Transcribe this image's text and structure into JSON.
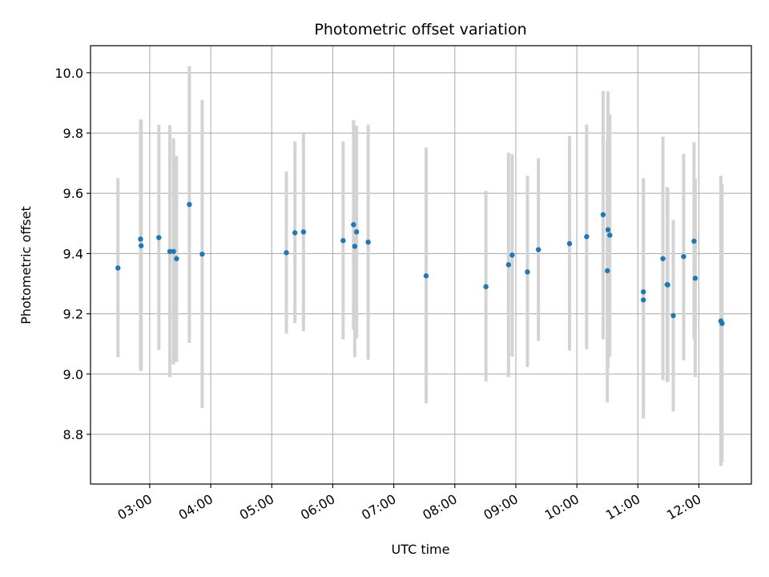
{
  "chart_data": {
    "type": "scatter",
    "title": "Photometric offset variation",
    "xlabel": "UTC time",
    "ylabel": "Photometric offset",
    "x_unit": "hours",
    "xlim": [
      2.03,
      12.86
    ],
    "ylim": [
      8.635,
      10.09
    ],
    "xticks": [
      {
        "value": 3,
        "label": "03:00"
      },
      {
        "value": 4,
        "label": "04:00"
      },
      {
        "value": 5,
        "label": "05:00"
      },
      {
        "value": 6,
        "label": "06:00"
      },
      {
        "value": 7,
        "label": "07:00"
      },
      {
        "value": 8,
        "label": "08:00"
      },
      {
        "value": 9,
        "label": "09:00"
      },
      {
        "value": 10,
        "label": "10:00"
      },
      {
        "value": 11,
        "label": "11:00"
      },
      {
        "value": 12,
        "label": "12:00"
      }
    ],
    "yticks": [
      {
        "value": 8.8,
        "label": "8.8"
      },
      {
        "value": 9.0,
        "label": "9.0"
      },
      {
        "value": 9.2,
        "label": "9.2"
      },
      {
        "value": 9.4,
        "label": "9.4"
      },
      {
        "value": 9.6,
        "label": "9.6"
      },
      {
        "value": 9.8,
        "label": "9.8"
      },
      {
        "value": 10.0,
        "label": "10.0"
      }
    ],
    "grid": true,
    "legend": "none",
    "colors": {
      "marker": "#1f77b4",
      "errorbar": "#d3d3d3",
      "grid": "#b0b0b0"
    },
    "points": [
      {
        "x": 2.48,
        "y": 9.352,
        "lo": 9.056,
        "hi": 9.65
      },
      {
        "x": 2.85,
        "y": 9.448,
        "lo": 9.01,
        "hi": 9.845
      },
      {
        "x": 2.86,
        "y": 9.426,
        "lo": 9.012,
        "hi": 9.845
      },
      {
        "x": 3.15,
        "y": 9.453,
        "lo": 9.08,
        "hi": 9.828
      },
      {
        "x": 3.33,
        "y": 9.407,
        "lo": 8.99,
        "hi": 9.826
      },
      {
        "x": 3.39,
        "y": 9.407,
        "lo": 9.032,
        "hi": 9.783
      },
      {
        "x": 3.44,
        "y": 9.383,
        "lo": 9.04,
        "hi": 9.724
      },
      {
        "x": 3.65,
        "y": 9.563,
        "lo": 9.103,
        "hi": 10.022
      },
      {
        "x": 3.86,
        "y": 9.398,
        "lo": 8.888,
        "hi": 9.91
      },
      {
        "x": 5.24,
        "y": 9.403,
        "lo": 9.134,
        "hi": 9.672
      },
      {
        "x": 5.38,
        "y": 9.469,
        "lo": 9.169,
        "hi": 9.772
      },
      {
        "x": 5.52,
        "y": 9.472,
        "lo": 9.142,
        "hi": 9.797
      },
      {
        "x": 6.17,
        "y": 9.443,
        "lo": 9.115,
        "hi": 9.772
      },
      {
        "x": 6.34,
        "y": 9.496,
        "lo": 9.148,
        "hi": 9.843
      },
      {
        "x": 6.36,
        "y": 9.424,
        "lo": 9.056,
        "hi": 9.8
      },
      {
        "x": 6.39,
        "y": 9.472,
        "lo": 9.118,
        "hi": 9.825
      },
      {
        "x": 6.58,
        "y": 9.438,
        "lo": 9.048,
        "hi": 9.828
      },
      {
        "x": 7.53,
        "y": 9.326,
        "lo": 8.903,
        "hi": 9.752
      },
      {
        "x": 8.51,
        "y": 9.29,
        "lo": 8.975,
        "hi": 9.608
      },
      {
        "x": 8.88,
        "y": 9.363,
        "lo": 8.99,
        "hi": 9.735
      },
      {
        "x": 8.94,
        "y": 9.395,
        "lo": 9.058,
        "hi": 9.73
      },
      {
        "x": 9.19,
        "y": 9.339,
        "lo": 9.023,
        "hi": 9.658
      },
      {
        "x": 9.37,
        "y": 9.413,
        "lo": 9.11,
        "hi": 9.717
      },
      {
        "x": 9.88,
        "y": 9.433,
        "lo": 9.078,
        "hi": 9.79
      },
      {
        "x": 10.16,
        "y": 9.456,
        "lo": 9.083,
        "hi": 9.828
      },
      {
        "x": 10.43,
        "y": 9.529,
        "lo": 9.115,
        "hi": 9.94
      },
      {
        "x": 10.5,
        "y": 9.343,
        "lo": 8.906,
        "hi": 9.78
      },
      {
        "x": 10.51,
        "y": 9.479,
        "lo": 9.02,
        "hi": 9.938
      },
      {
        "x": 10.54,
        "y": 9.461,
        "lo": 9.058,
        "hi": 9.863
      },
      {
        "x": 11.09,
        "y": 9.273,
        "lo": 8.895,
        "hi": 9.65
      },
      {
        "x": 11.09,
        "y": 9.246,
        "lo": 8.852,
        "hi": 9.648
      },
      {
        "x": 11.41,
        "y": 9.383,
        "lo": 8.98,
        "hi": 9.788
      },
      {
        "x": 11.48,
        "y": 9.297,
        "lo": 8.973,
        "hi": 9.621
      },
      {
        "x": 11.49,
        "y": 9.296,
        "lo": 8.975,
        "hi": 9.617
      },
      {
        "x": 11.58,
        "y": 9.194,
        "lo": 8.876,
        "hi": 9.512
      },
      {
        "x": 11.75,
        "y": 9.39,
        "lo": 9.046,
        "hi": 9.731
      },
      {
        "x": 11.92,
        "y": 9.441,
        "lo": 9.115,
        "hi": 9.769
      },
      {
        "x": 11.94,
        "y": 9.318,
        "lo": 8.99,
        "hi": 9.649
      },
      {
        "x": 12.36,
        "y": 9.176,
        "lo": 8.695,
        "hi": 9.658
      },
      {
        "x": 12.38,
        "y": 9.168,
        "lo": 8.706,
        "hi": 9.632
      }
    ]
  }
}
